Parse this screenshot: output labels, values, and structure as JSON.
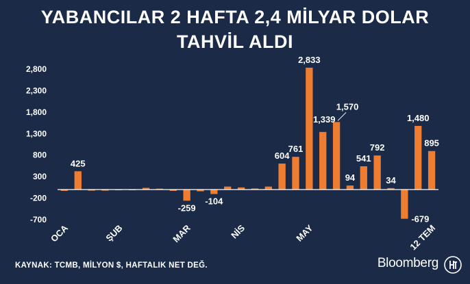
{
  "title_line1": "YABANCILAR 2 HAFTA 2,4 MİLYAR DOLAR",
  "title_line2": "TAHVİL ALDI",
  "source": "KAYNAK: TCMB, MİLYON $, HAFTALIK NET DEĞ.",
  "brand": "Bloomberg",
  "colors": {
    "background": "#1b2a47",
    "bar": "#ee7d31",
    "text": "#ffffff"
  },
  "chart_data": {
    "type": "bar",
    "title": "YABANCILAR 2 HAFTA 2,4 MİLYAR DOLAR TAHVİL ALDI",
    "xlabel": "",
    "ylabel": "",
    "ylim": [
      -700,
      2800
    ],
    "yticks": [
      2800,
      2300,
      1800,
      1300,
      800,
      300,
      -200,
      -700
    ],
    "ytick_labels": [
      "2,800",
      "2,300",
      "1,800",
      "1,300",
      "800",
      "300",
      "-200",
      "-700"
    ],
    "x_labels": [
      {
        "text": "OCA",
        "index": 0
      },
      {
        "text": "ŞUB",
        "index": 4
      },
      {
        "text": "MAR",
        "index": 9
      },
      {
        "text": "NİS",
        "index": 13
      },
      {
        "text": "MAY",
        "index": 18
      },
      {
        "text": "12 TEM",
        "index": 27
      }
    ],
    "values": [
      -30,
      425,
      -25,
      -25,
      -10,
      0,
      40,
      20,
      -30,
      -259,
      -40,
      -104,
      70,
      50,
      25,
      70,
      604,
      761,
      2833,
      1339,
      1570,
      94,
      541,
      792,
      34,
      -679,
      1480,
      895
    ],
    "data_labels": [
      {
        "index": 1,
        "text": "425"
      },
      {
        "index": 9,
        "text": "-259"
      },
      {
        "index": 11,
        "text": "-104"
      },
      {
        "index": 16,
        "text": "604"
      },
      {
        "index": 17,
        "text": "761"
      },
      {
        "index": 18,
        "text": "2,833"
      },
      {
        "index": 19,
        "text": "1,339"
      },
      {
        "index": 20,
        "text": "1,570"
      },
      {
        "index": 21,
        "text": "94"
      },
      {
        "index": 22,
        "text": "541"
      },
      {
        "index": 23,
        "text": "792"
      },
      {
        "index": 24,
        "text": "34"
      },
      {
        "index": 25,
        "text": "-679"
      },
      {
        "index": 26,
        "text": "1,480"
      },
      {
        "index": 27,
        "text": "895"
      }
    ],
    "grid": false
  }
}
